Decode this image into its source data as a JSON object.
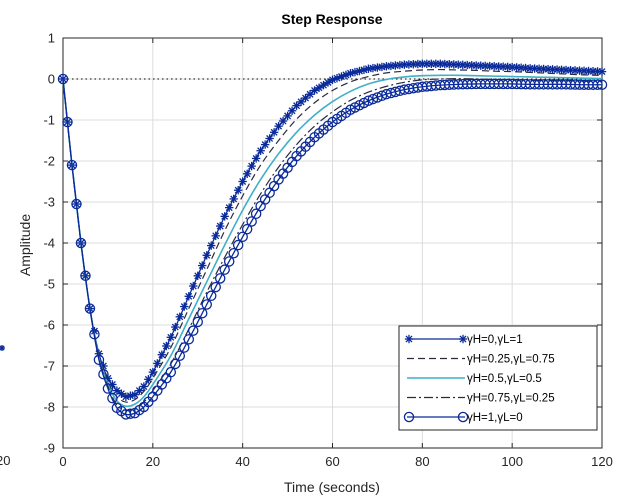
{
  "chart_data": {
    "type": "line",
    "title": "Step Response",
    "xlabel": "Time (seconds)",
    "ylabel": "Amplitude",
    "xlim": [
      0,
      120
    ],
    "ylim": [
      -9,
      1
    ],
    "grid": true,
    "legend_position": "bottom-right",
    "x_ticks": [
      "0",
      "20",
      "40",
      "60",
      "80",
      "100",
      "120"
    ],
    "y_ticks": [
      "1",
      "0",
      "-1",
      "-2",
      "-3",
      "-4",
      "-5",
      "-6",
      "-7",
      "-8",
      "-9"
    ],
    "left_edge_fragments": {
      "tick_label": "20",
      "marker": "*"
    },
    "reference_line": {
      "y": 0,
      "style": "dotted",
      "color": "#000000"
    },
    "x": [
      0,
      2,
      4,
      6,
      8,
      10,
      12,
      14,
      16,
      18,
      20,
      24,
      28,
      32,
      36,
      40,
      44,
      48,
      52,
      56,
      60,
      64,
      68,
      72,
      76,
      80,
      84,
      88,
      92,
      96,
      100,
      104,
      108,
      112,
      116,
      120
    ],
    "series": [
      {
        "name": "γH=0,γL=1",
        "color": "#0a2a9a",
        "dash": "",
        "width": 1.3,
        "marker": "star",
        "values": [
          0,
          -2.1,
          -4.0,
          -5.6,
          -6.7,
          -7.3,
          -7.6,
          -7.75,
          -7.7,
          -7.5,
          -7.15,
          -6.3,
          -5.3,
          -4.3,
          -3.35,
          -2.5,
          -1.75,
          -1.15,
          -0.65,
          -0.28,
          -0.02,
          0.14,
          0.25,
          0.31,
          0.35,
          0.37,
          0.37,
          0.35,
          0.33,
          0.31,
          0.29,
          0.26,
          0.24,
          0.22,
          0.2,
          0.18
        ]
      },
      {
        "name": "γH=0.25,γL=0.75",
        "color": "#2a2a40",
        "dash": "7,4",
        "width": 1.2,
        "marker": "none",
        "values": [
          0,
          -2.1,
          -4.0,
          -5.6,
          -6.75,
          -7.4,
          -7.75,
          -7.88,
          -7.82,
          -7.62,
          -7.3,
          -6.55,
          -5.6,
          -4.65,
          -3.7,
          -2.85,
          -2.1,
          -1.5,
          -0.98,
          -0.58,
          -0.28,
          -0.07,
          0.06,
          0.15,
          0.19,
          0.22,
          0.23,
          0.22,
          0.21,
          0.19,
          0.18,
          0.16,
          0.14,
          0.12,
          0.1,
          0.09
        ]
      },
      {
        "name": "γH=0.5,γL=0.5",
        "color": "#3fb0c8",
        "dash": "",
        "width": 1.6,
        "marker": "none",
        "values": [
          0,
          -2.1,
          -4.0,
          -5.6,
          -6.8,
          -7.45,
          -7.85,
          -7.98,
          -7.93,
          -7.75,
          -7.45,
          -6.75,
          -5.85,
          -4.95,
          -4.05,
          -3.2,
          -2.45,
          -1.82,
          -1.3,
          -0.88,
          -0.55,
          -0.3,
          -0.12,
          -0.01,
          0.05,
          0.08,
          0.09,
          0.09,
          0.08,
          0.07,
          0.06,
          0.05,
          0.04,
          0.03,
          0.02,
          0.01
        ]
      },
      {
        "name": "γH=0.75,γL=0.25",
        "color": "#2a2a40",
        "dash": "9,3,2,3",
        "width": 1.2,
        "marker": "none",
        "values": [
          0,
          -2.1,
          -4.0,
          -5.6,
          -6.8,
          -7.5,
          -7.95,
          -8.08,
          -8.04,
          -7.88,
          -7.6,
          -6.95,
          -6.1,
          -5.2,
          -4.35,
          -3.55,
          -2.8,
          -2.15,
          -1.6,
          -1.15,
          -0.8,
          -0.52,
          -0.32,
          -0.18,
          -0.08,
          -0.02,
          0.0,
          0.01,
          0.0,
          -0.01,
          -0.02,
          -0.03,
          -0.04,
          -0.04,
          -0.05,
          -0.06
        ]
      },
      {
        "name": "γH=1,γL=0",
        "color": "#0a2a9a",
        "dash": "",
        "width": 1.3,
        "marker": "circle",
        "values": [
          0,
          -2.1,
          -4.0,
          -5.6,
          -6.85,
          -7.55,
          -8.02,
          -8.18,
          -8.15,
          -8.0,
          -7.75,
          -7.15,
          -6.35,
          -5.5,
          -4.65,
          -3.85,
          -3.1,
          -2.45,
          -1.88,
          -1.42,
          -1.05,
          -0.75,
          -0.53,
          -0.37,
          -0.26,
          -0.19,
          -0.15,
          -0.13,
          -0.12,
          -0.12,
          -0.12,
          -0.13,
          -0.13,
          -0.13,
          -0.14,
          -0.14
        ]
      }
    ]
  }
}
